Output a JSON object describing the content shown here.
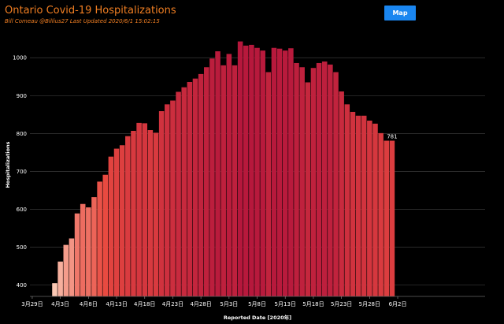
{
  "header": {
    "title": "Ontario Covid-19 Hospitalizations",
    "subtitle": "Bill Comeau @Billius27  Last Updated  2020/6/1 15:02:15",
    "map_button": "Map"
  },
  "colors": {
    "background": "#000000",
    "title": "#f07e22",
    "button": "#1a86f0",
    "bar_low": "#fbc8b4",
    "bar_high": "#b5173c"
  },
  "chart_data": {
    "type": "bar",
    "xlabel": "Reported Date [2020年]",
    "ylabel": "Hospitalizations",
    "ylim": [
      370,
      1065
    ],
    "yticks": [
      400,
      500,
      600,
      700,
      800,
      900,
      1000
    ],
    "grid": true,
    "x_tick_labels": [
      {
        "label": "3月29日",
        "day_index": -5
      },
      {
        "label": "4月3日",
        "day_index": 0
      },
      {
        "label": "4月8日",
        "day_index": 5
      },
      {
        "label": "4月13日",
        "day_index": 10
      },
      {
        "label": "4月18日",
        "day_index": 15
      },
      {
        "label": "4月23日",
        "day_index": 20
      },
      {
        "label": "4月28日",
        "day_index": 25
      },
      {
        "label": "5月3日",
        "day_index": 30
      },
      {
        "label": "5月8日",
        "day_index": 35
      },
      {
        "label": "5月13日",
        "day_index": 40
      },
      {
        "label": "5月18日",
        "day_index": 45
      },
      {
        "label": "5月23日",
        "day_index": 50
      },
      {
        "label": "5月28日",
        "day_index": 55
      },
      {
        "label": "6月2日",
        "day_index": 60
      }
    ],
    "series": [
      {
        "start_date": "2020-04-02",
        "values": [
          405,
          462,
          506,
          523,
          589,
          614,
          605,
          632,
          673,
          691,
          739,
          760,
          769,
          793,
          807,
          828,
          827,
          809,
          802,
          859,
          877,
          887,
          910,
          922,
          936,
          945,
          957,
          975,
          998,
          1017,
          980,
          1010,
          980,
          1043,
          1032,
          1034,
          1026,
          1019,
          962,
          1026,
          1024,
          1019,
          1025,
          986,
          975,
          935,
          973,
          986,
          990,
          982,
          962,
          911,
          877,
          857,
          847,
          847,
          834,
          826,
          801,
          781,
          781
        ]
      }
    ],
    "annotation": "781"
  }
}
